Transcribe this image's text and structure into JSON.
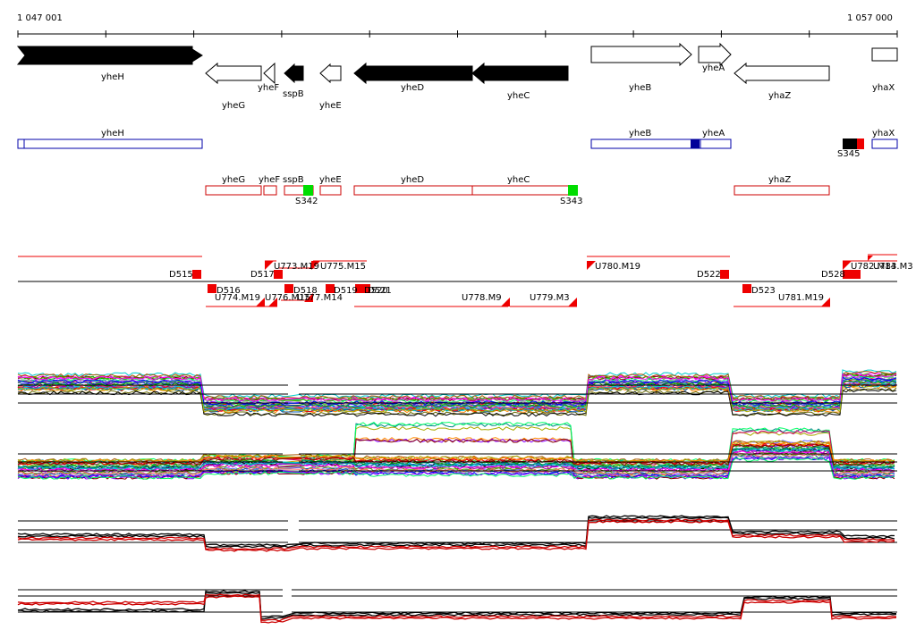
{
  "ruler": {
    "start_label": "1 047 001",
    "end_label": "1 057 000"
  },
  "colors": {
    "fill_gene": "#000000",
    "blue_box": "#0000aa",
    "red_box": "#cc0000",
    "signal_green": "#00dd00",
    "marker_red": "#ee0000",
    "dark_blue": "#000099"
  },
  "genes": [
    {
      "name": "yheH",
      "dir": "right",
      "filled": true
    },
    {
      "name": "yheG",
      "dir": "left",
      "filled": false
    },
    {
      "name": "yheF",
      "dir": "left",
      "filled": false
    },
    {
      "name": "sspB",
      "dir": "left",
      "filled": true
    },
    {
      "name": "yheE",
      "dir": "left",
      "filled": false
    },
    {
      "name": "yheD",
      "dir": "left",
      "filled": true
    },
    {
      "name": "yheC",
      "dir": "left",
      "filled": true
    },
    {
      "name": "yheB",
      "dir": "right",
      "filled": false
    },
    {
      "name": "yheA",
      "dir": "right",
      "filled": false
    },
    {
      "name": "yhaZ",
      "dir": "left",
      "filled": false
    },
    {
      "name": "yhaX",
      "dir": "right",
      "filled": false
    }
  ],
  "forward_boxes": [
    {
      "name": "yheH"
    },
    {
      "name": "yheB"
    },
    {
      "name": "yheA"
    },
    {
      "name": "yhaX"
    }
  ],
  "reverse_boxes": [
    {
      "name": "yheG"
    },
    {
      "name": "yheF"
    },
    {
      "name": "sspB"
    },
    {
      "name": "yheE"
    },
    {
      "name": "yheD"
    },
    {
      "name": "yheC"
    },
    {
      "name": "yhaZ"
    }
  ],
  "signal_labels": [
    "S345",
    "S342",
    "S343"
  ],
  "segment_labels": [
    "D515",
    "D517",
    "U773.M19",
    "U775.M15",
    "U780.M19",
    "D522",
    "D528",
    "U782.M14",
    "U783.M3",
    "D516",
    "U774.M19",
    "U776.M15",
    "U777.M14",
    "D518",
    "D519",
    "D520",
    "D521",
    "U778.M9",
    "U779.M3",
    "D523",
    "U781.M19"
  ]
}
